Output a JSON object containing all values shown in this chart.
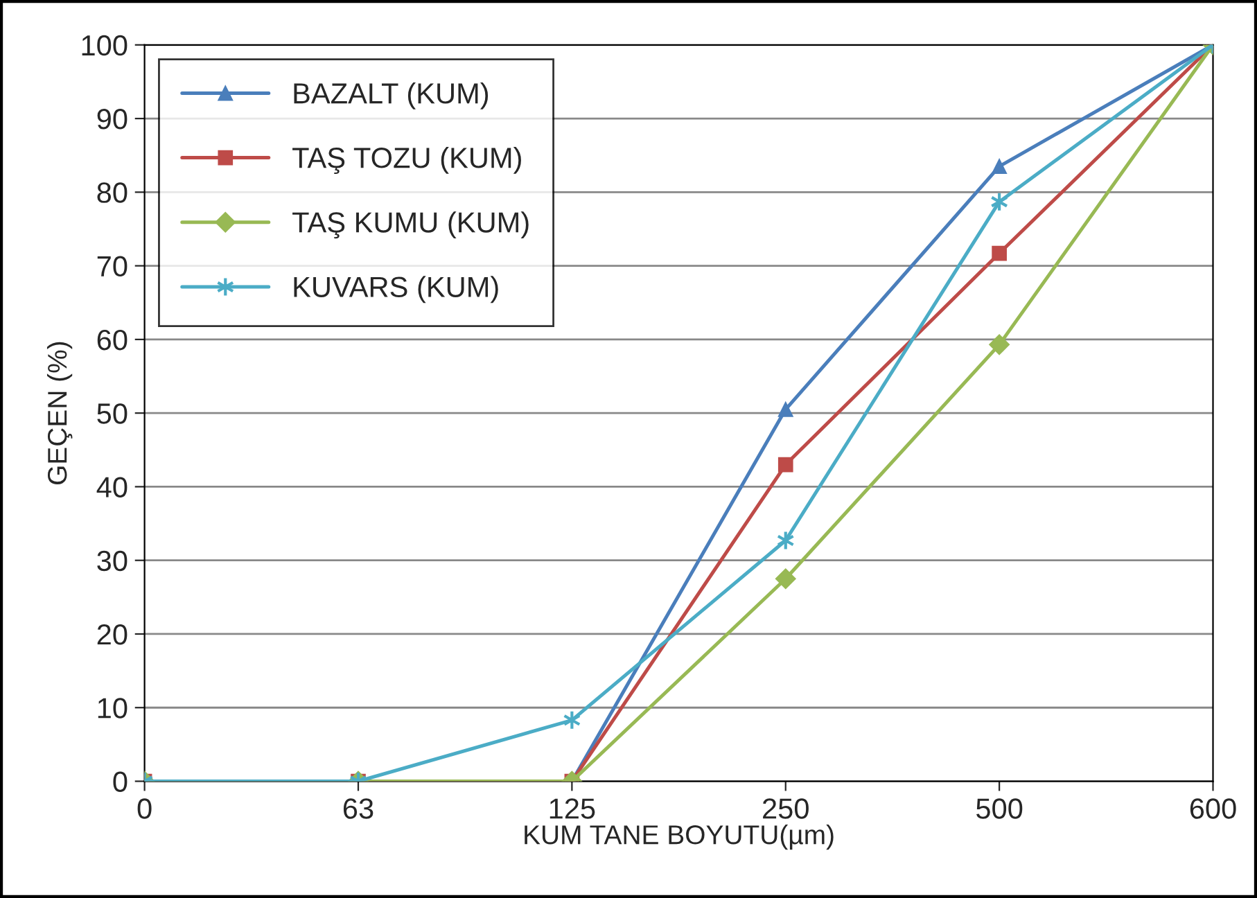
{
  "chart_data": {
    "type": "line",
    "xlabel": "KUM TANE BOYUTU(µm)",
    "ylabel": "GEÇEN (%)",
    "categories": [
      "0",
      "63",
      "125",
      "250",
      "500",
      "600"
    ],
    "series": [
      {
        "name": "BAZALT (KUM)",
        "color": "#4a7ebb",
        "marker": "triangle",
        "values": [
          0,
          0,
          0,
          50.5,
          83.5,
          100
        ]
      },
      {
        "name": "TAŞ TOZU (KUM)",
        "color": "#be4b48",
        "marker": "square",
        "values": [
          0,
          0,
          0,
          43,
          71.7,
          100
        ]
      },
      {
        "name": "TAŞ KUMU (KUM)",
        "color": "#98b954",
        "marker": "diamond",
        "values": [
          0,
          0,
          0,
          27.5,
          59.3,
          100
        ]
      },
      {
        "name": "KUVARS (KUM)",
        "color": "#4bacc6",
        "marker": "cross",
        "values": [
          0,
          0,
          8.3,
          32.7,
          78.7,
          100
        ]
      }
    ],
    "ylim": [
      0,
      100
    ],
    "yticks": [
      0,
      10,
      20,
      30,
      40,
      50,
      60,
      70,
      80,
      90,
      100
    ],
    "grid": "y",
    "legend": "top left",
    "line_style": "solid"
  }
}
